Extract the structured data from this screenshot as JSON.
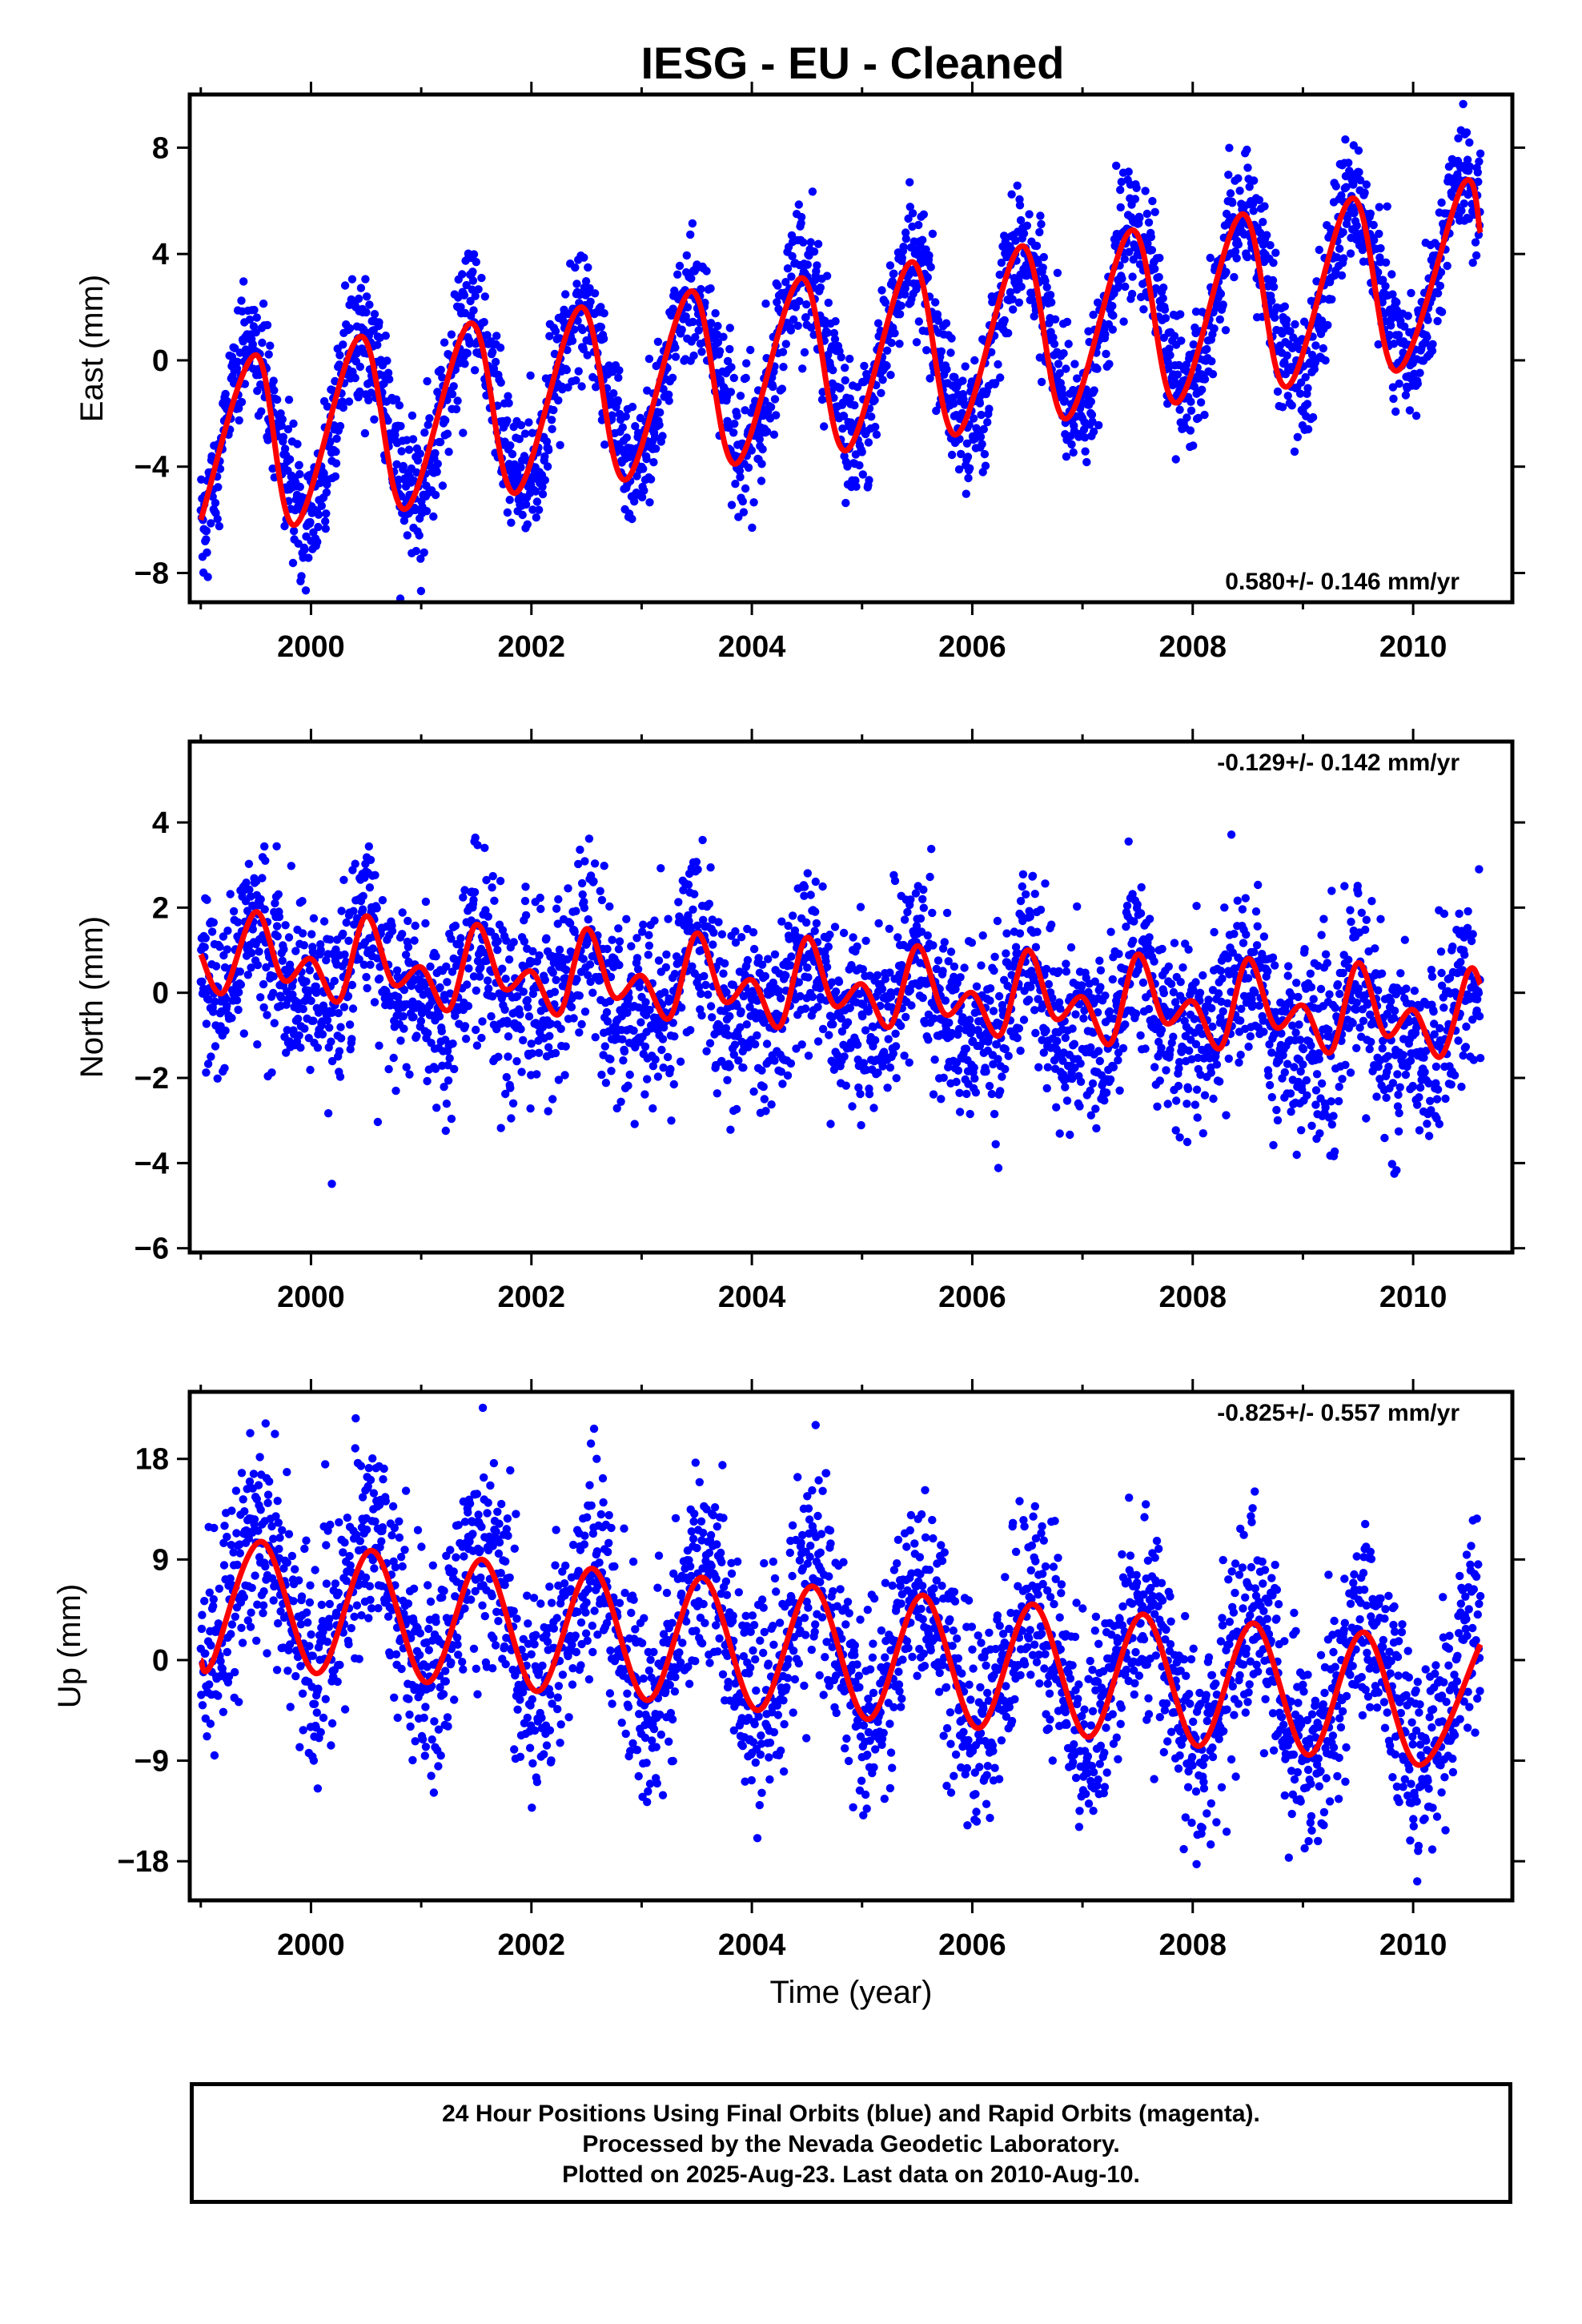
{
  "title": "IESG  - EU - Cleaned",
  "footer": {
    "line1": "24 Hour Positions Using Final Orbits (blue) and Rapid Orbits (magenta).",
    "line2": "Processed by the Nevada Geodetic Laboratory.",
    "line3": "Plotted on 2025-Aug-23. Last data on 2010-Aug-10."
  },
  "colors": {
    "points": "#0000ff",
    "model": "#ff0000",
    "frame": "#000000"
  },
  "chart_data": [
    {
      "type": "scatter",
      "ylabel": "East (mm)",
      "xlabel": "",
      "rate_label": "0.580+/- 0.146 mm/yr",
      "rate_position": "bottom-right",
      "xlim": [
        1998.9,
        2010.9
      ],
      "ylim": [
        -9.1,
        10.0
      ],
      "xticks": [
        "2000",
        "2002",
        "2004",
        "2006",
        "2008",
        "2010"
      ],
      "yticks": [
        "-8",
        "-4",
        "0",
        "4",
        "8"
      ],
      "grid": false,
      "series": [
        {
          "name": "",
          "kind": "points",
          "x_range": [
            1999.0,
            2010.61
          ],
          "scatter_sd": 1.2,
          "approx_model": {
            "intercept": -2.6,
            "trend": 0.58,
            "annual_amp": 3.2,
            "annual_peak": 0.45,
            "semiannual_amp": 0.0,
            "semiannual_peak": 0.0
          }
        },
        {
          "name": "",
          "kind": "model_line",
          "x": [
            1999.0,
            1999.5,
            1999.85,
            2000.45,
            2000.85,
            2001.45,
            2001.85,
            2002.45,
            2002.85,
            2003.45,
            2003.85,
            2004.45,
            2004.85,
            2005.45,
            2005.85,
            2006.45,
            2006.85,
            2007.45,
            2007.85,
            2008.45,
            2008.85,
            2009.45,
            2009.85,
            2010.45,
            2010.61
          ],
          "y": [
            -6.0,
            0.2,
            -6.2,
            0.9,
            -5.6,
            1.4,
            -5.0,
            2.0,
            -4.5,
            2.6,
            -3.9,
            3.1,
            -3.4,
            3.7,
            -2.8,
            4.3,
            -2.2,
            4.9,
            -1.6,
            5.5,
            -1.0,
            6.1,
            -0.4,
            6.6,
            4.8
          ]
        }
      ]
    },
    {
      "type": "scatter",
      "ylabel": "North (mm)",
      "xlabel": "",
      "rate_label": "-0.129+/- 0.142 mm/yr",
      "rate_position": "top-right",
      "xlim": [
        1998.9,
        2010.9
      ],
      "ylim": [
        -6.1,
        5.9
      ],
      "xticks": [
        "2000",
        "2002",
        "2004",
        "2006",
        "2008",
        "2010"
      ],
      "yticks": [
        "-6",
        "-4",
        "-2",
        "0",
        "2",
        "4"
      ],
      "grid": false,
      "series": [
        {
          "name": "",
          "kind": "points",
          "x_range": [
            1999.0,
            2010.61
          ],
          "scatter_sd": 1.05,
          "approx_model": {
            "intercept": 0.5,
            "trend": -0.13,
            "annual_amp": 0.8,
            "annual_peak": 0.5,
            "semiannual_amp": 0.5,
            "semiannual_peak": 0.0
          }
        },
        {
          "name": "",
          "kind": "model_line",
          "x": [
            1999.0,
            1999.2,
            1999.5,
            1999.75,
            2000.0,
            2000.25,
            2000.5,
            2000.75,
            2001.0,
            2001.25,
            2001.5,
            2001.75,
            2002.0,
            2002.25,
            2002.5,
            2002.75,
            2003.0,
            2003.25,
            2003.5,
            2003.75,
            2004.0,
            2004.25,
            2004.5,
            2004.75,
            2005.0,
            2005.25,
            2005.5,
            2005.75,
            2006.0,
            2006.25,
            2006.5,
            2006.75,
            2007.0,
            2007.25,
            2007.5,
            2007.75,
            2008.0,
            2008.25,
            2008.5,
            2008.75,
            2009.0,
            2009.25,
            2009.5,
            2009.75,
            2010.0,
            2010.25,
            2010.5,
            2010.61
          ],
          "y": [
            0.9,
            0.0,
            1.9,
            0.3,
            0.8,
            -0.2,
            1.8,
            0.2,
            0.6,
            -0.4,
            1.6,
            0.1,
            0.5,
            -0.5,
            1.5,
            -0.1,
            0.4,
            -0.6,
            1.4,
            -0.2,
            0.3,
            -0.8,
            1.3,
            -0.3,
            0.2,
            -0.8,
            1.1,
            -0.5,
            0.0,
            -1.0,
            1.0,
            -0.6,
            -0.1,
            -1.2,
            0.9,
            -0.7,
            -0.2,
            -1.3,
            0.8,
            -0.8,
            -0.3,
            -1.4,
            0.7,
            -1.0,
            -0.4,
            -1.5,
            0.5,
            0.2
          ]
        }
      ]
    },
    {
      "type": "scatter",
      "ylabel": "Up (mm)",
      "xlabel": "Time (year)",
      "rate_label": "-0.825+/- 0.557 mm/yr",
      "rate_position": "top-right",
      "xlim": [
        1998.9,
        2010.9
      ],
      "ylim": [
        -21.5,
        24.0
      ],
      "xticks": [
        "2000",
        "2002",
        "2004",
        "2006",
        "2008",
        "2010"
      ],
      "yticks": [
        "-18",
        "-9",
        "0",
        "9",
        "18"
      ],
      "grid": false,
      "series": [
        {
          "name": "",
          "kind": "points",
          "x_range": [
            1999.0,
            2010.61
          ],
          "scatter_sd": 4.6,
          "approx_model": {
            "intercept": 5.0,
            "trend": -0.83,
            "annual_amp": 6.3,
            "annual_peak": 0.55,
            "semiannual_amp": 0.0,
            "semiannual_peak": 0.0
          }
        },
        {
          "name": "",
          "kind": "model_line",
          "x": [
            1999.0,
            1999.1,
            1999.55,
            2000.05,
            2000.55,
            2001.05,
            2001.55,
            2002.05,
            2002.55,
            2003.05,
            2003.55,
            2004.05,
            2004.55,
            2005.05,
            2005.55,
            2006.05,
            2006.55,
            2007.05,
            2007.55,
            2008.05,
            2008.55,
            2009.05,
            2009.55,
            2010.05,
            2010.61
          ],
          "y": [
            0.0,
            -0.3,
            10.6,
            -1.2,
            9.8,
            -2.0,
            9.0,
            -2.8,
            8.2,
            -3.6,
            7.4,
            -4.5,
            6.6,
            -5.3,
            5.8,
            -6.1,
            5.0,
            -6.9,
            4.1,
            -7.7,
            3.3,
            -8.5,
            2.5,
            -9.4,
            1.4
          ]
        }
      ]
    }
  ]
}
